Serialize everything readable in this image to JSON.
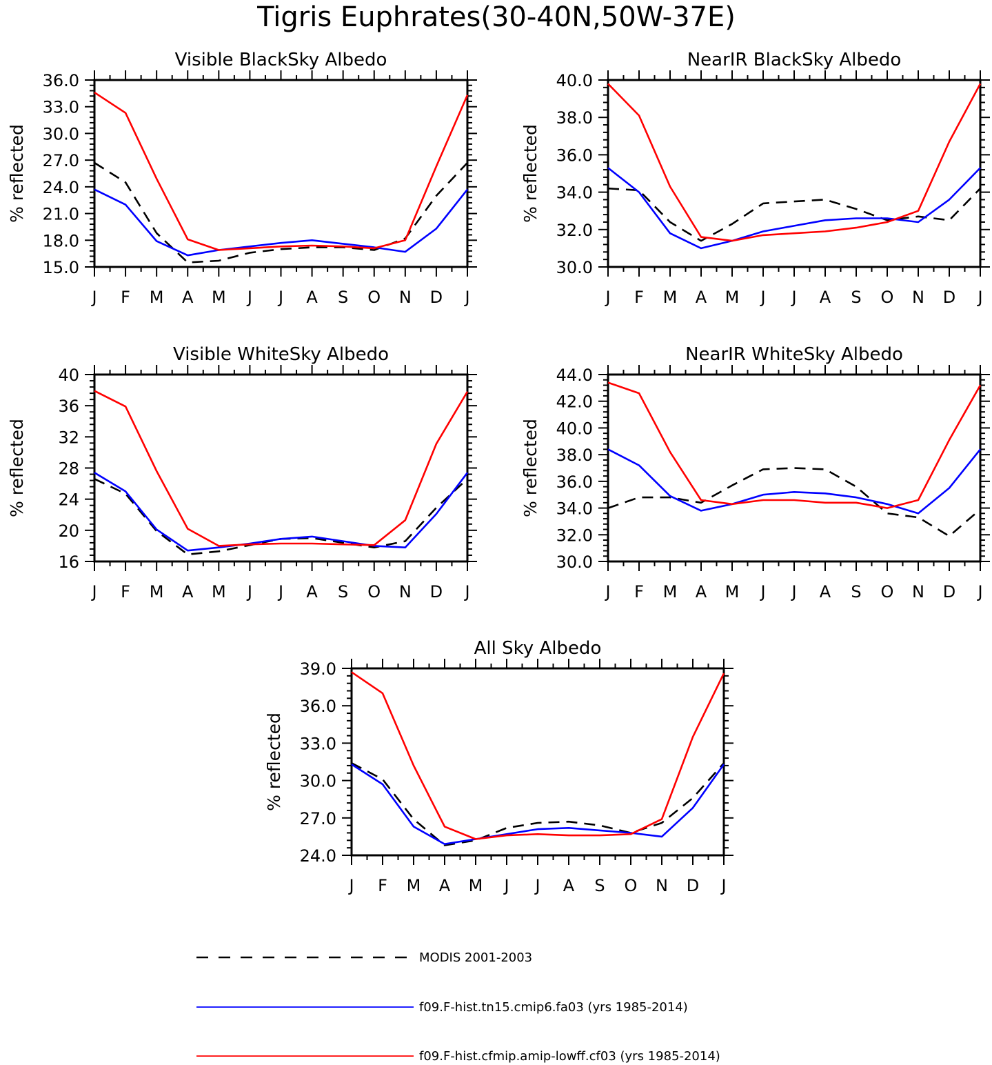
{
  "figure": {
    "title": "Tigris Euphrates(30-40N,50W-37E)"
  },
  "legend": [
    {
      "label": "MODIS 2001-2003",
      "color": "#000000",
      "dash": true
    },
    {
      "label": "f09.F-hist.tn15.cmip6.fa03 (yrs 1985-2014)",
      "color": "#0000ff",
      "dash": false
    },
    {
      "label": "f09.F-hist.cfmip.amip-lowff.cf03 (yrs 1985-2014)",
      "color": "#ff0000",
      "dash": false
    }
  ],
  "chart_data": [
    {
      "type": "line",
      "title": "Visible BlackSky Albedo",
      "ylabel": "% reflected",
      "categories": [
        "J",
        "F",
        "M",
        "A",
        "M",
        "J",
        "J",
        "A",
        "S",
        "O",
        "N",
        "D",
        "J"
      ],
      "ylim": [
        15,
        36
      ],
      "yticks": [
        "15.0",
        "18.0",
        "21.0",
        "24.0",
        "27.0",
        "30.0",
        "33.0",
        "36.0"
      ],
      "series": [
        {
          "name": "MODIS 2001-2003",
          "color": "#000000",
          "dash": true,
          "values": [
            26.7,
            24.5,
            18.8,
            15.5,
            15.7,
            16.6,
            17.0,
            17.2,
            17.2,
            16.9,
            18.2,
            23.0,
            26.7
          ]
        },
        {
          "name": "f09.F-hist.tn15.cmip6.fa03 (yrs 1985-2014)",
          "color": "#0000ff",
          "dash": false,
          "values": [
            23.7,
            22.0,
            17.9,
            16.3,
            16.9,
            17.3,
            17.7,
            18.0,
            17.6,
            17.2,
            16.7,
            19.3,
            23.7
          ]
        },
        {
          "name": "f09.F-hist.cfmip.amip-lowff.cf03 (yrs 1985-2014)",
          "color": "#ff0000",
          "dash": false,
          "values": [
            34.6,
            32.3,
            24.9,
            18.1,
            16.9,
            17.1,
            17.3,
            17.4,
            17.3,
            17.1,
            18.0,
            26.3,
            34.3
          ]
        }
      ]
    },
    {
      "type": "line",
      "title": "NearIR BlackSky Albedo",
      "ylabel": "% reflected",
      "categories": [
        "J",
        "F",
        "M",
        "A",
        "M",
        "J",
        "J",
        "A",
        "S",
        "O",
        "N",
        "D",
        "J"
      ],
      "ylim": [
        30,
        40
      ],
      "yticks": [
        "30.0",
        "32.0",
        "34.0",
        "36.0",
        "38.0",
        "40.0"
      ],
      "series": [
        {
          "name": "MODIS 2001-2003",
          "color": "#000000",
          "dash": true,
          "values": [
            34.2,
            34.1,
            32.4,
            31.4,
            32.3,
            33.4,
            33.5,
            33.6,
            33.1,
            32.5,
            32.7,
            32.5,
            34.2
          ]
        },
        {
          "name": "f09.F-hist.tn15.cmip6.fa03 (yrs 1985-2014)",
          "color": "#0000ff",
          "dash": false,
          "values": [
            35.3,
            34.0,
            31.8,
            31.0,
            31.4,
            31.9,
            32.2,
            32.5,
            32.6,
            32.6,
            32.4,
            33.6,
            35.3
          ]
        },
        {
          "name": "f09.F-hist.cfmip.amip-lowff.cf03 (yrs 1985-2014)",
          "color": "#ff0000",
          "dash": false,
          "values": [
            39.8,
            38.1,
            34.3,
            31.6,
            31.4,
            31.7,
            31.8,
            31.9,
            32.1,
            32.4,
            33.0,
            36.7,
            39.8
          ]
        }
      ]
    },
    {
      "type": "line",
      "title": "Visible WhiteSky Albedo",
      "ylabel": "% reflected",
      "categories": [
        "J",
        "F",
        "M",
        "A",
        "M",
        "J",
        "J",
        "A",
        "S",
        "O",
        "N",
        "D",
        "J"
      ],
      "ylim": [
        16,
        40
      ],
      "yticks": [
        "16",
        "20",
        "24",
        "28",
        "32",
        "36",
        "40"
      ],
      "series": [
        {
          "name": "MODIS 2001-2003",
          "color": "#000000",
          "dash": true,
          "values": [
            26.6,
            24.7,
            19.9,
            16.9,
            17.3,
            18.1,
            18.9,
            19.0,
            18.4,
            17.8,
            18.6,
            22.9,
            26.6
          ]
        },
        {
          "name": "f09.F-hist.tn15.cmip6.fa03 (yrs 1985-2014)",
          "color": "#0000ff",
          "dash": false,
          "values": [
            27.4,
            25.0,
            20.1,
            17.4,
            17.8,
            18.3,
            18.9,
            19.2,
            18.6,
            18.0,
            17.8,
            22.1,
            27.4
          ]
        },
        {
          "name": "f09.F-hist.cfmip.amip-lowff.cf03 (yrs 1985-2014)",
          "color": "#ff0000",
          "dash": false,
          "values": [
            37.9,
            35.9,
            27.6,
            20.2,
            18.0,
            18.2,
            18.3,
            18.3,
            18.2,
            18.1,
            21.3,
            31.1,
            37.8
          ]
        }
      ]
    },
    {
      "type": "line",
      "title": "NearIR WhiteSky Albedo",
      "ylabel": "% reflected",
      "categories": [
        "J",
        "F",
        "M",
        "A",
        "M",
        "J",
        "J",
        "A",
        "S",
        "O",
        "N",
        "D",
        "J"
      ],
      "ylim": [
        30,
        44
      ],
      "yticks": [
        "30.0",
        "32.0",
        "34.0",
        "36.0",
        "38.0",
        "40.0",
        "42.0",
        "44.0"
      ],
      "series": [
        {
          "name": "MODIS 2001-2003",
          "color": "#000000",
          "dash": true,
          "values": [
            34.0,
            34.8,
            34.8,
            34.4,
            35.7,
            36.9,
            37.0,
            36.9,
            35.6,
            33.6,
            33.3,
            31.9,
            33.9
          ]
        },
        {
          "name": "f09.F-hist.tn15.cmip6.fa03 (yrs 1985-2014)",
          "color": "#0000ff",
          "dash": false,
          "values": [
            38.4,
            37.2,
            34.9,
            33.8,
            34.3,
            35.0,
            35.2,
            35.1,
            34.8,
            34.3,
            33.6,
            35.5,
            38.4
          ]
        },
        {
          "name": "f09.F-hist.cfmip.amip-lowff.cf03 (yrs 1985-2014)",
          "color": "#ff0000",
          "dash": false,
          "values": [
            43.4,
            42.6,
            38.2,
            34.6,
            34.3,
            34.6,
            34.6,
            34.4,
            34.4,
            34.0,
            34.6,
            39.1,
            43.2
          ]
        }
      ]
    },
    {
      "type": "line",
      "title": "All Sky Albedo",
      "ylabel": "% reflected",
      "categories": [
        "J",
        "F",
        "M",
        "A",
        "M",
        "J",
        "J",
        "A",
        "S",
        "O",
        "N",
        "D",
        "J"
      ],
      "ylim": [
        24,
        39
      ],
      "yticks": [
        "24.0",
        "27.0",
        "30.0",
        "33.0",
        "36.0",
        "39.0"
      ],
      "series": [
        {
          "name": "MODIS 2001-2003",
          "color": "#000000",
          "dash": true,
          "values": [
            31.4,
            30.1,
            26.9,
            24.8,
            25.2,
            26.2,
            26.6,
            26.7,
            26.4,
            25.8,
            26.6,
            28.6,
            31.4
          ]
        },
        {
          "name": "f09.F-hist.tn15.cmip6.fa03 (yrs 1985-2014)",
          "color": "#0000ff",
          "dash": false,
          "values": [
            31.3,
            29.7,
            26.3,
            24.9,
            25.3,
            25.7,
            26.1,
            26.2,
            26.0,
            25.8,
            25.5,
            27.8,
            31.3
          ]
        },
        {
          "name": "f09.F-hist.cfmip.amip-lowff.cf03 (yrs 1985-2014)",
          "color": "#ff0000",
          "dash": false,
          "values": [
            38.7,
            37.0,
            31.2,
            26.3,
            25.3,
            25.6,
            25.7,
            25.6,
            25.6,
            25.7,
            26.9,
            33.5,
            38.6
          ]
        }
      ]
    }
  ]
}
